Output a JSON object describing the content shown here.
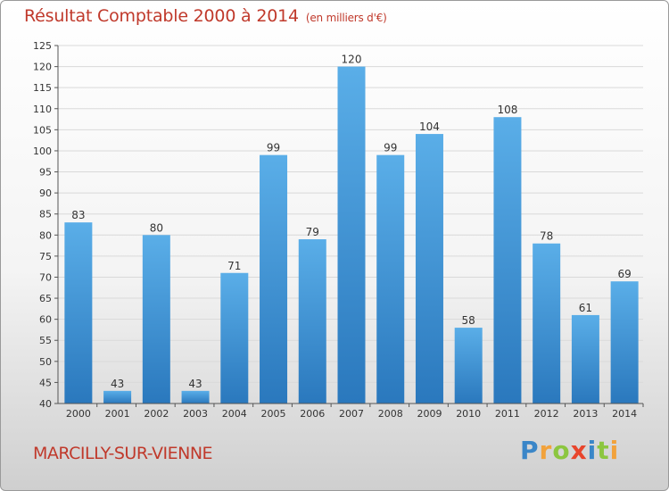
{
  "header": {
    "title": "Résultat Comptable 2000 à 2014",
    "subtitle": "(en milliers d'€)"
  },
  "footer": {
    "location": "MARCILLY-SUR-VIENNE",
    "logo_letters": [
      "P",
      "r",
      "o",
      "x",
      "i",
      "t",
      "i"
    ],
    "logo_colors": [
      "#3a86c8",
      "#f2a23b",
      "#8cc63f",
      "#e8452c",
      "#3a86c8",
      "#8cc63f",
      "#f2a23b"
    ]
  },
  "colors": {
    "bar_top": "#5aaee8",
    "bar_bottom": "#2a78bd",
    "text": "#333333",
    "grid": "#d9d9d9"
  },
  "chart_data": {
    "type": "bar",
    "title": "Résultat Comptable 2000 à 2014",
    "subtitle": "(en milliers d'€)",
    "xlabel": "",
    "ylabel": "",
    "categories": [
      "2000",
      "2001",
      "2002",
      "2003",
      "2004",
      "2005",
      "2006",
      "2007",
      "2008",
      "2009",
      "2010",
      "2011",
      "2012",
      "2013",
      "2014"
    ],
    "values": [
      83,
      43,
      80,
      43,
      71,
      99,
      79,
      120,
      99,
      104,
      58,
      108,
      78,
      61,
      69
    ],
    "ylim": [
      40,
      125
    ],
    "ytick_step": 5,
    "grid": true,
    "legend": "none"
  }
}
